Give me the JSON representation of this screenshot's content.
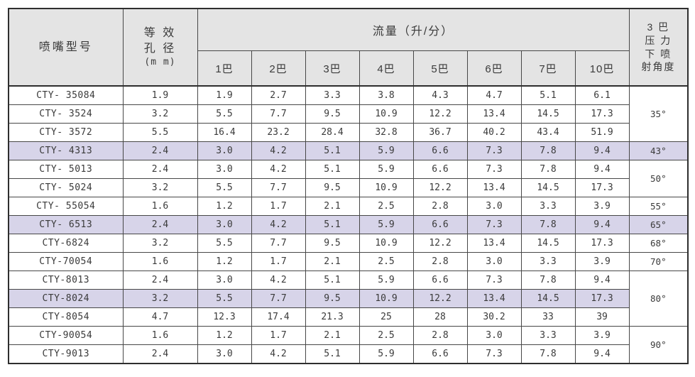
{
  "colors": {
    "page_bg": "#ffffff",
    "header_bg": "#e4e4e4",
    "highlight_bg": "#d7d4e9",
    "border": "#474747",
    "border_strong": "#2e2e2e",
    "text": "#3a3a3a"
  },
  "table": {
    "headers": {
      "model": "喷嘴型号",
      "diameter_lines": [
        "等 效",
        "孔 径",
        "(m m)"
      ],
      "flow_group": "流量（升/分）",
      "pressures": [
        "1巴",
        "2巴",
        "3巴",
        "4巴",
        "5巴",
        "6巴",
        "7巴",
        "10巴"
      ],
      "angle_lines": [
        "3 巴",
        "压 力",
        "下 喷",
        "射角度"
      ]
    },
    "rows": [
      {
        "model": "CTY- 35084",
        "diameter": "1.9",
        "flows": [
          "1.9",
          "2.7",
          "3.3",
          "3.8",
          "4.3",
          "4.7",
          "5.1",
          "6.1"
        ],
        "angle": "35°",
        "angle_rowspan": 3,
        "highlight": false
      },
      {
        "model": "CTY- 3524",
        "diameter": "3.2",
        "flows": [
          "5.5",
          "7.7",
          "9.5",
          "10.9",
          "12.2",
          "13.4",
          "14.5",
          "17.3"
        ],
        "highlight": false
      },
      {
        "model": "CTY- 3572",
        "diameter": "5.5",
        "flows": [
          "16.4",
          "23.2",
          "28.4",
          "32.8",
          "36.7",
          "40.2",
          "43.4",
          "51.9"
        ],
        "highlight": false
      },
      {
        "model": "CTY- 4313",
        "diameter": "2.4",
        "flows": [
          "3.0",
          "4.2",
          "5.1",
          "5.9",
          "6.6",
          "7.3",
          "7.8",
          "9.4"
        ],
        "angle": "43°",
        "angle_rowspan": 1,
        "highlight": true
      },
      {
        "model": "CTY- 5013",
        "diameter": "2.4",
        "flows": [
          "3.0",
          "4.2",
          "5.1",
          "5.9",
          "6.6",
          "7.3",
          "7.8",
          "9.4"
        ],
        "angle": "50°",
        "angle_rowspan": 2,
        "highlight": false
      },
      {
        "model": "CTY- 5024",
        "diameter": "3.2",
        "flows": [
          "5.5",
          "7.7",
          "9.5",
          "10.9",
          "12.2",
          "13.4",
          "14.5",
          "17.3"
        ],
        "highlight": false
      },
      {
        "model": "CTY- 55054",
        "diameter": "1.6",
        "flows": [
          "1.2",
          "1.7",
          "2.1",
          "2.5",
          "2.8",
          "3.0",
          "3.3",
          "3.9"
        ],
        "angle": "55°",
        "angle_rowspan": 1,
        "highlight": false
      },
      {
        "model": "CTY- 6513",
        "diameter": "2.4",
        "flows": [
          "3.0",
          "4.2",
          "5.1",
          "5.9",
          "6.6",
          "7.3",
          "7.8",
          "9.4"
        ],
        "angle": "65°",
        "angle_rowspan": 1,
        "highlight": true
      },
      {
        "model": "CTY-6824",
        "diameter": "3.2",
        "flows": [
          "5.5",
          "7.7",
          "9.5",
          "10.9",
          "12.2",
          "13.4",
          "14.5",
          "17.3"
        ],
        "angle": "68°",
        "angle_rowspan": 1,
        "highlight": false
      },
      {
        "model": "CTY-70054",
        "diameter": "1.6",
        "flows": [
          "1.2",
          "1.7",
          "2.1",
          "2.5",
          "2.8",
          "3.0",
          "3.3",
          "3.9"
        ],
        "angle": "70°",
        "angle_rowspan": 1,
        "highlight": false
      },
      {
        "model": "CTY-8013",
        "diameter": "2.4",
        "flows": [
          "3.0",
          "4.2",
          "5.1",
          "5.9",
          "6.6",
          "7.3",
          "7.8",
          "9.4"
        ],
        "angle": "80°",
        "angle_rowspan": 3,
        "highlight": false
      },
      {
        "model": "CTY-8024",
        "diameter": "3.2",
        "flows": [
          "5.5",
          "7.7",
          "9.5",
          "10.9",
          "12.2",
          "13.4",
          "14.5",
          "17.3"
        ],
        "highlight": true
      },
      {
        "model": "CTY-8054",
        "diameter": "4.7",
        "flows": [
          "12.3",
          "17.4",
          "21.3",
          "25",
          "28",
          "30.2",
          "33",
          "39"
        ],
        "highlight": false
      },
      {
        "model": "CTY-90054",
        "diameter": "1.6",
        "flows": [
          "1.2",
          "1.7",
          "2.1",
          "2.5",
          "2.8",
          "3.0",
          "3.3",
          "3.9"
        ],
        "angle": "90°",
        "angle_rowspan": 2,
        "highlight": false
      },
      {
        "model": "CTY-9013",
        "diameter": "2.4",
        "flows": [
          "3.0",
          "4.2",
          "5.1",
          "5.9",
          "6.6",
          "7.3",
          "7.8",
          "9.4"
        ],
        "highlight": false
      }
    ]
  }
}
